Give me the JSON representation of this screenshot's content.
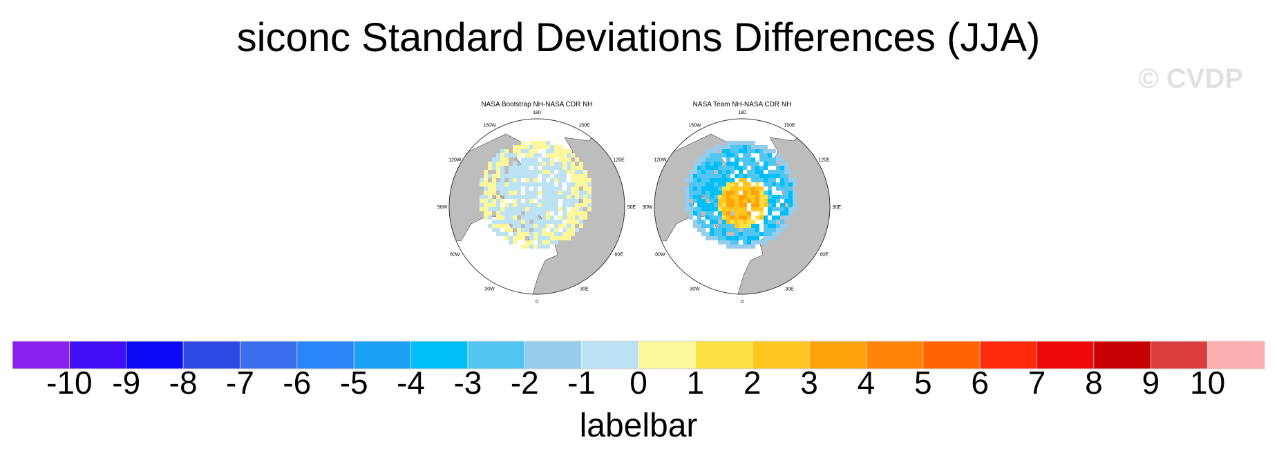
{
  "title": "siconc Standard Deviations Differences (JJA)",
  "watermark": "© CVDP",
  "panels": [
    {
      "title": "NASA Bootstrap NH-NASA CDR NH",
      "lon_labels": [
        "180",
        "150E",
        "120E",
        "90E",
        "60E",
        "30E",
        "0",
        "30W",
        "60W",
        "90W",
        "120W",
        "150W"
      ]
    },
    {
      "title": "NASA Team NH-NASA CDR NH",
      "lon_labels": [
        "180",
        "150E",
        "120E",
        "90E",
        "60E",
        "30E",
        "0",
        "30W",
        "60W",
        "90W",
        "120W",
        "150W"
      ]
    }
  ],
  "chart_data": {
    "type": "heatmap",
    "title": "siconc Standard Deviations Differences (JJA)",
    "panels": [
      {
        "name": "NASA Bootstrap NH-NASA CDR NH",
        "projection": "polar-stereographic-north",
        "dominant_value_range": [
          -1,
          1
        ]
      },
      {
        "name": "NASA Team NH-NASA CDR NH",
        "projection": "polar-stereographic-north",
        "dominant_value_range": [
          -4,
          3
        ]
      }
    ],
    "colorbar": {
      "label": "labelbar",
      "levels": [
        -10,
        -9,
        -8,
        -7,
        -6,
        -5,
        -4,
        -3,
        -2,
        -1,
        0,
        1,
        2,
        3,
        4,
        5,
        6,
        7,
        8,
        9,
        10
      ],
      "colors": [
        "#8a20ee",
        "#3f0ef4",
        "#0b0af4",
        "#2f4ae4",
        "#3a6eec",
        "#2a86f6",
        "#1aa0f4",
        "#00bff8",
        "#52c6f1",
        "#96cdec",
        "#bde2f4",
        "#fdf79b",
        "#fde243",
        "#fec61e",
        "#fea30a",
        "#ff8406",
        "#ff6404",
        "#ff2a0c",
        "#ef0808",
        "#c80202",
        "#db3e3e",
        "#fdaeae"
      ]
    },
    "land_color": "#bdbdbd"
  }
}
